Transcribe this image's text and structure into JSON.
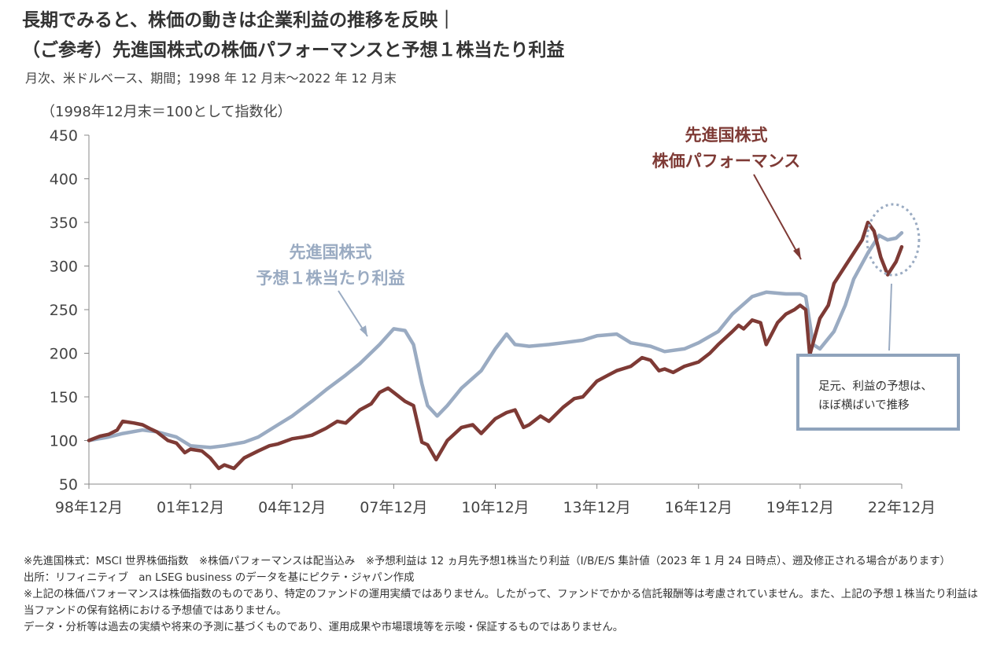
{
  "header": {
    "title_line1": "長期でみると、株価の動きは企業利益の推移を反映｜",
    "title_line2": "（ご参考）先進国株式の株価パフォーマンスと予想１株当たり利益",
    "subtitle": "月次、米ドルベース、期間；1998 年 12 月末～2022 年 12 月末",
    "unit_note": "（1998年12月末＝100として指数化）"
  },
  "annotations": {
    "performance_line1": "先進国株式",
    "performance_line2": "株価パフォーマンス",
    "eps_line1": "先進国株式",
    "eps_line2": "予想１株当たり利益",
    "note_line1": "足元、利益の予想は、",
    "note_line2": "ほぼ横ばいで推移"
  },
  "chart_data": {
    "type": "line",
    "x_tick_labels": [
      "98年12月",
      "01年12月",
      "04年12月",
      "07年12月",
      "10年12月",
      "13年12月",
      "16年12月",
      "19年12月",
      "22年12月"
    ],
    "xlim": [
      1998.917,
      2022.917
    ],
    "ylim": [
      50,
      450
    ],
    "y_ticks": [
      50,
      100,
      150,
      200,
      250,
      300,
      350,
      400,
      450
    ],
    "grid": false,
    "series": [
      {
        "name": "先進国株式 株価パフォーマンス",
        "color": "#7e3a35",
        "points": [
          [
            1998.917,
            100
          ],
          [
            1999.25,
            105
          ],
          [
            1999.5,
            107
          ],
          [
            1999.75,
            112
          ],
          [
            1999.917,
            122
          ],
          [
            2000.25,
            120
          ],
          [
            2000.5,
            118
          ],
          [
            2000.75,
            113
          ],
          [
            2000.917,
            110
          ],
          [
            2001.25,
            100
          ],
          [
            2001.5,
            97
          ],
          [
            2001.75,
            86
          ],
          [
            2001.917,
            90
          ],
          [
            2002.25,
            88
          ],
          [
            2002.5,
            80
          ],
          [
            2002.75,
            68
          ],
          [
            2002.917,
            72
          ],
          [
            2003.2,
            68
          ],
          [
            2003.5,
            80
          ],
          [
            2003.917,
            88
          ],
          [
            2004.25,
            94
          ],
          [
            2004.5,
            96
          ],
          [
            2004.917,
            102
          ],
          [
            2005.25,
            104
          ],
          [
            2005.5,
            106
          ],
          [
            2005.917,
            114
          ],
          [
            2006.25,
            122
          ],
          [
            2006.5,
            120
          ],
          [
            2006.917,
            135
          ],
          [
            2007.25,
            142
          ],
          [
            2007.5,
            155
          ],
          [
            2007.75,
            160
          ],
          [
            2007.917,
            155
          ],
          [
            2008.25,
            145
          ],
          [
            2008.5,
            140
          ],
          [
            2008.75,
            98
          ],
          [
            2008.917,
            95
          ],
          [
            2009.17,
            78
          ],
          [
            2009.5,
            100
          ],
          [
            2009.917,
            115
          ],
          [
            2010.25,
            118
          ],
          [
            2010.5,
            108
          ],
          [
            2010.917,
            125
          ],
          [
            2011.25,
            132
          ],
          [
            2011.5,
            135
          ],
          [
            2011.75,
            115
          ],
          [
            2011.917,
            118
          ],
          [
            2012.25,
            128
          ],
          [
            2012.5,
            122
          ],
          [
            2012.917,
            138
          ],
          [
            2013.25,
            148
          ],
          [
            2013.5,
            150
          ],
          [
            2013.917,
            168
          ],
          [
            2014.25,
            175
          ],
          [
            2014.5,
            180
          ],
          [
            2014.917,
            185
          ],
          [
            2015.25,
            195
          ],
          [
            2015.5,
            192
          ],
          [
            2015.75,
            180
          ],
          [
            2015.917,
            182
          ],
          [
            2016.17,
            178
          ],
          [
            2016.5,
            185
          ],
          [
            2016.917,
            190
          ],
          [
            2017.25,
            200
          ],
          [
            2017.5,
            210
          ],
          [
            2017.917,
            225
          ],
          [
            2018.1,
            232
          ],
          [
            2018.25,
            228
          ],
          [
            2018.5,
            238
          ],
          [
            2018.75,
            235
          ],
          [
            2018.917,
            210
          ],
          [
            2019.25,
            235
          ],
          [
            2019.5,
            245
          ],
          [
            2019.75,
            250
          ],
          [
            2019.917,
            255
          ],
          [
            2020.083,
            250
          ],
          [
            2020.2,
            198
          ],
          [
            2020.5,
            240
          ],
          [
            2020.75,
            255
          ],
          [
            2020.917,
            280
          ],
          [
            2021.25,
            300
          ],
          [
            2021.5,
            315
          ],
          [
            2021.75,
            330
          ],
          [
            2021.917,
            350
          ],
          [
            2022.1,
            340
          ],
          [
            2022.3,
            310
          ],
          [
            2022.5,
            290
          ],
          [
            2022.75,
            305
          ],
          [
            2022.917,
            322
          ]
        ]
      },
      {
        "name": "先進国株式 予想１株当たり利益",
        "color": "#9aabc2",
        "points": [
          [
            1998.917,
            100
          ],
          [
            1999.5,
            104
          ],
          [
            1999.917,
            108
          ],
          [
            2000.5,
            112
          ],
          [
            2000.917,
            110
          ],
          [
            2001.5,
            104
          ],
          [
            2001.917,
            94
          ],
          [
            2002.5,
            92
          ],
          [
            2002.917,
            94
          ],
          [
            2003.5,
            98
          ],
          [
            2003.917,
            104
          ],
          [
            2004.5,
            118
          ],
          [
            2004.917,
            128
          ],
          [
            2005.5,
            145
          ],
          [
            2005.917,
            158
          ],
          [
            2006.5,
            175
          ],
          [
            2006.917,
            188
          ],
          [
            2007.5,
            210
          ],
          [
            2007.917,
            228
          ],
          [
            2008.25,
            226
          ],
          [
            2008.5,
            210
          ],
          [
            2008.75,
            165
          ],
          [
            2008.917,
            140
          ],
          [
            2009.2,
            128
          ],
          [
            2009.5,
            140
          ],
          [
            2009.917,
            160
          ],
          [
            2010.5,
            180
          ],
          [
            2010.917,
            205
          ],
          [
            2011.25,
            222
          ],
          [
            2011.5,
            210
          ],
          [
            2011.917,
            208
          ],
          [
            2012.5,
            210
          ],
          [
            2012.917,
            212
          ],
          [
            2013.5,
            215
          ],
          [
            2013.917,
            220
          ],
          [
            2014.5,
            222
          ],
          [
            2014.917,
            212
          ],
          [
            2015.5,
            208
          ],
          [
            2015.917,
            202
          ],
          [
            2016.5,
            205
          ],
          [
            2016.917,
            212
          ],
          [
            2017.5,
            225
          ],
          [
            2017.917,
            245
          ],
          [
            2018.5,
            265
          ],
          [
            2018.917,
            270
          ],
          [
            2019.5,
            268
          ],
          [
            2019.917,
            268
          ],
          [
            2020.083,
            265
          ],
          [
            2020.3,
            210
          ],
          [
            2020.5,
            205
          ],
          [
            2020.917,
            225
          ],
          [
            2021.25,
            255
          ],
          [
            2021.5,
            285
          ],
          [
            2021.917,
            315
          ],
          [
            2022.25,
            335
          ],
          [
            2022.5,
            330
          ],
          [
            2022.75,
            332
          ],
          [
            2022.917,
            338
          ]
        ]
      }
    ]
  },
  "footnotes": [
    "※先進国株式：MSCI 世界株価指数　※株価パフォーマンスは配当込み　※予想利益は 12 ヵ月先予想1株当たり利益（I/B/E/S 集計値（2023 年 1 月 24 日時点）、遡及修正される場合があります）",
    "出所：リフィニティブ　an LSEG business のデータを基にピクテ・ジャパン作成",
    "※上記の株価パフォーマンスは株価指数のものであり、特定のファンドの運用実績ではありません。したがって、ファンドでかかる信託報酬等は考慮されていません。また、上記の予想１株当たり利益は当ファンドの保有銘柄における予想値ではありません。",
    "データ・分析等は過去の実績や将来の予測に基づくものであり、運用成果や市場環境等を示唆・保証するものではありません。"
  ]
}
